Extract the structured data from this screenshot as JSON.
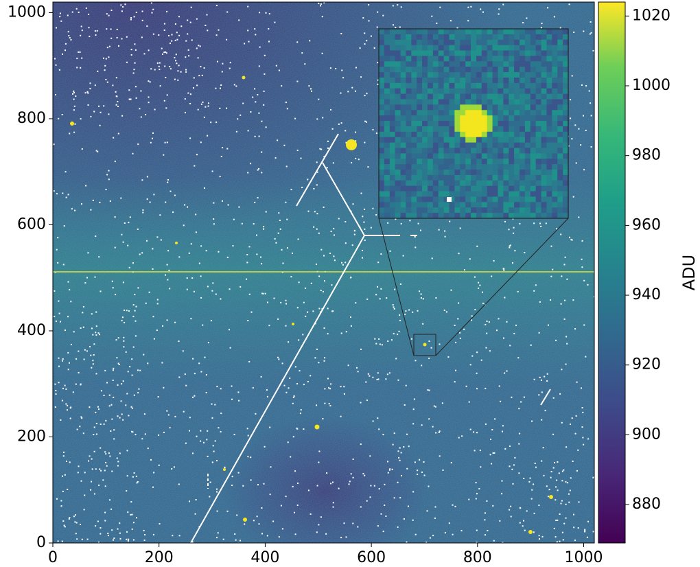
{
  "chart_data": {
    "type": "image",
    "xlim": [
      0,
      1020
    ],
    "ylim": [
      0,
      1020
    ],
    "xticks": [
      0,
      200,
      400,
      600,
      800,
      1000
    ],
    "yticks": [
      0,
      200,
      400,
      600,
      800,
      1000
    ],
    "colormap": "viridis",
    "colorbar": {
      "label": "ADU",
      "lim": [
        869,
        1024
      ],
      "ticks": [
        880,
        900,
        920,
        940,
        960,
        980,
        1000,
        1020
      ]
    }
  }
}
